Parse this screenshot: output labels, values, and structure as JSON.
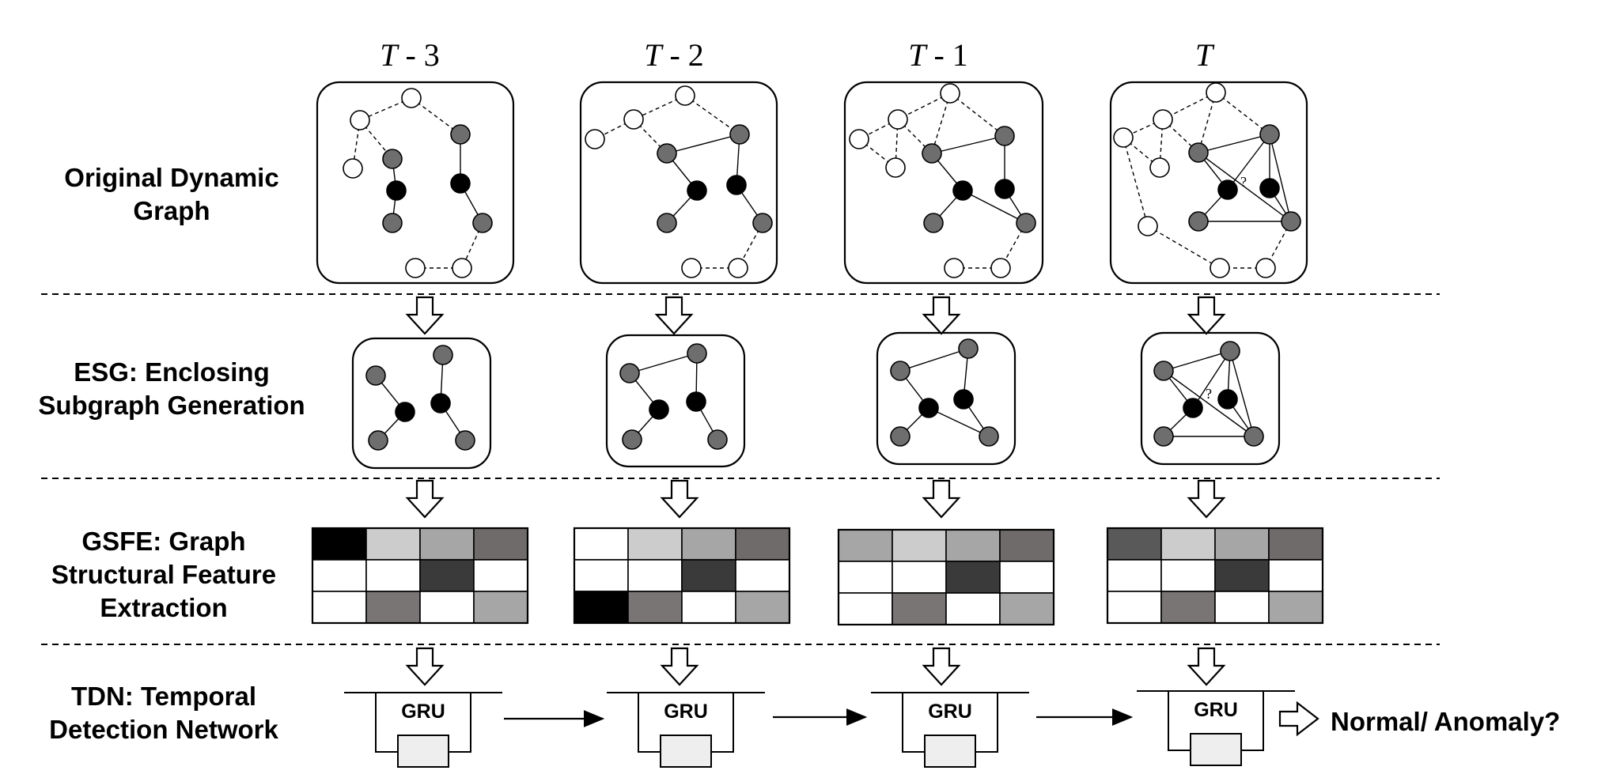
{
  "stages": [
    {
      "id": "odg",
      "lines": [
        "Original Dynamic",
        "Graph"
      ]
    },
    {
      "id": "esg",
      "lines": [
        "ESG: Enclosing",
        "Subgraph Generation"
      ]
    },
    {
      "id": "gsfe",
      "lines": [
        "GSFE: Graph",
        "Structural Feature",
        "Extraction"
      ]
    },
    {
      "id": "tdn",
      "lines": [
        "TDN: Temporal",
        "Detection Network"
      ]
    }
  ],
  "timesteps": [
    {
      "var": "T",
      "suffix": " - 3"
    },
    {
      "var": "T",
      "suffix": " - 2"
    },
    {
      "var": "T",
      "suffix": " - 1"
    },
    {
      "var": "T",
      "suffix": ""
    }
  ],
  "gru_label": "GRU",
  "query_mark": "?",
  "result_label": "Normal/ Anomaly?",
  "colors": {
    "core_node": "#000000",
    "neighbor_node": "#6e6e6e",
    "outer_node": "#ffffff",
    "gru_inner": "#eeeeee"
  },
  "feature_matrices": [
    [
      [
        "#000000",
        "#cccccc",
        "#a6a6a6",
        "#706b6b"
      ],
      [
        "#ffffff",
        "#ffffff",
        "#3a3a3a",
        "#ffffff"
      ],
      [
        "#ffffff",
        "#7a7575",
        "#ffffff",
        "#a6a6a6"
      ]
    ],
    [
      [
        "#ffffff",
        "#cccccc",
        "#a6a6a6",
        "#706b6b"
      ],
      [
        "#ffffff",
        "#ffffff",
        "#3a3a3a",
        "#ffffff"
      ],
      [
        "#000000",
        "#7a7575",
        "#ffffff",
        "#a6a6a6"
      ]
    ],
    [
      [
        "#a6a6a6",
        "#cccccc",
        "#a6a6a6",
        "#706b6b"
      ],
      [
        "#ffffff",
        "#ffffff",
        "#3a3a3a",
        "#ffffff"
      ],
      [
        "#ffffff",
        "#7a7575",
        "#ffffff",
        "#a6a6a6"
      ]
    ],
    [
      [
        "#595959",
        "#cccccc",
        "#a6a6a6",
        "#706b6b"
      ],
      [
        "#ffffff",
        "#ffffff",
        "#3a3a3a",
        "#ffffff"
      ],
      [
        "#ffffff",
        "#7a7575",
        "#ffffff",
        "#a6a6a6"
      ]
    ]
  ]
}
